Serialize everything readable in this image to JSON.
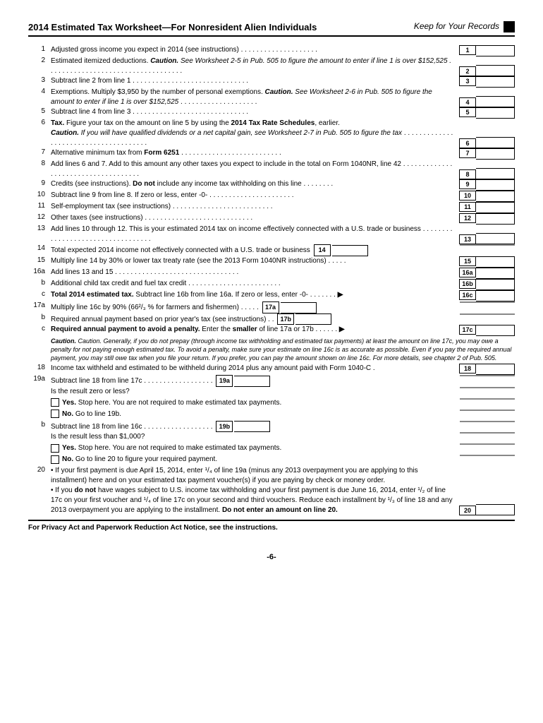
{
  "header": {
    "title": "2014 Estimated Tax Worksheet—For Nonresident Alien Individuals",
    "keep": "Keep for Your Records"
  },
  "lines": {
    "l1": {
      "n": "1",
      "t": "Adjusted gross income you expect in 2014 (see instructions)",
      "box": "1"
    },
    "l2": {
      "n": "2",
      "box": "2"
    },
    "l2a": "Estimated itemized deductions. ",
    "l2b": "Caution.",
    "l2c": " See Worksheet 2-5 in Pub. 505 to figure the amount to enter if line 1 is over $152,525 .",
    "l3": {
      "n": "3",
      "t": "Subtract line 2 from line 1",
      "box": "3"
    },
    "l4": {
      "n": "4",
      "box": "4"
    },
    "l4a": "Exemptions. Multiply $3,950 by the number of personal exemptions. ",
    "l4b": "Caution.",
    "l4c": " See Worksheet 2-6 in Pub. 505 to figure the amount to enter if line 1 is over $152,525",
    "l5": {
      "n": "5",
      "t": "Subtract line 4 from line 3",
      "box": "5"
    },
    "l6": {
      "n": "6",
      "box": "6"
    },
    "l6a": "Tax.",
    "l6b": " Figure your tax on the amount on line 5 by using the ",
    "l6c": "2014 Tax Rate Schedules",
    "l6d": ", earlier.",
    "l6e": "Caution.",
    "l6f": " If you will have qualified dividends or a net capital gain, see Worksheet 2-7 in Pub. 505 to figure the tax",
    "l7": {
      "n": "7",
      "box": "7"
    },
    "l7a": "Alternative minimum tax from ",
    "l7b": "Form 6251",
    "l8": {
      "n": "8",
      "t": "Add lines 6 and 7. Add to this amount any other taxes you expect to include in the total on Form 1040NR, line 42",
      "box": "8"
    },
    "l9": {
      "n": "9",
      "box": "9"
    },
    "l9a": "Credits (see instructions). ",
    "l9b": "Do not",
    "l9c": " include any income tax withholding on this line",
    "l10": {
      "n": "10",
      "t": "Subtract line 9 from line 8. If zero or less, enter -0-",
      "box": "10"
    },
    "l11": {
      "n": "11",
      "t": "Self-employment tax (see instructions)",
      "box": "11"
    },
    "l12": {
      "n": "12",
      "t": "Other taxes (see instructions)",
      "box": "12"
    },
    "l13": {
      "n": "13",
      "t": "Add lines 10 through 12. This is your estimated 2014 tax on income effectively connected with a U.S. trade or business",
      "box": "13"
    },
    "l14": {
      "n": "14",
      "t": "Total expected 2014 income not effectively connected with a U.S. trade or business",
      "box": "14"
    },
    "l15": {
      "n": "15",
      "t": "Multiply line 14 by 30% or lower tax treaty rate (see the 2013 Form 1040NR instructions)",
      "box": "15"
    },
    "l16a": {
      "n": "16a",
      "t": "Add lines 13 and 15",
      "box": "16a"
    },
    "l16b": {
      "n": "b",
      "t": "Additional child tax credit and fuel tax credit",
      "box": "16b"
    },
    "l16c": {
      "n": "c",
      "box": "16c"
    },
    "l16ca": "Total 2014 estimated tax.",
    "l16cb": " Subtract line 16b from line 16a. If zero or less, enter -0-",
    "l17a": {
      "n": "17a",
      "t": "Multiply line 16c by 90% (66²/₃ % for farmers and fishermen)",
      "box": "17a"
    },
    "l17b": {
      "n": "b",
      "t": "Required annual payment based on prior year's tax (see instructions) .",
      "box": "17b"
    },
    "l17c": {
      "n": "c",
      "box": "17c"
    },
    "l17ca": "Required annual payment to avoid a penalty.",
    "l17cb": " Enter the ",
    "l17cc": "smaller",
    "l17cd": " of line 17a or 17b",
    "caution17": "Caution. Generally, if you do not prepay (through income tax withholding and estimated tax payments) at least the amount on line 17c, you may owe a penalty for not paying enough estimated tax. To avoid a penalty, make sure your estimate on line 16c is as accurate as possible. Even if you pay the required annual payment, you may still owe tax when you file your return. If you prefer, you can pay the amount shown on line 16c. For more details, see chapter 2 of Pub. 505.",
    "l18": {
      "n": "18",
      "t": "Income tax withheld and estimated to be withheld during 2014 plus any amount paid with Form 1040-C",
      "box": "18"
    },
    "l19a": {
      "n": "19a",
      "t": "Subtract line 18 from line 17c",
      "box": "19a"
    },
    "q19a": "Is the result zero or less?",
    "yes19": "Yes.",
    "yes19t": " Stop here. You are not required to make estimated tax payments.",
    "no19": "No.",
    "no19t": " Go to line 19b.",
    "l19b": {
      "n": "b",
      "t": "Subtract line 18 from line 16c",
      "box": "19b"
    },
    "q19b": "Is the result less than $1,000?",
    "yes19b": "Yes.",
    "yes19bt": " Stop here. You are not required to make estimated tax payments.",
    "no19b": "No.",
    "no19bt": " Go to line 20 to figure your required payment.",
    "l20": {
      "n": "20",
      "box": "20"
    },
    "l20a": "• If your first payment is due April 15, 2014, enter ¹/₄ of line 19a (minus any 2013 overpayment you are applying to this installment) here and on your estimated tax payment voucher(s) if you are paying by check or money order.",
    "l20b1": "• If you ",
    "l20b2": "do not",
    "l20b3": " have wages subject to U.S. income tax withholding and your first payment is due June 16, 2014, enter ¹/₂ of line 17c on your first voucher and ¹/₄ of line 17c on your second and third vouchers. Reduce each installment by ¹/₃ of line 18 and any 2013 overpayment you are applying to the installment. ",
    "l20b4": "Do not enter an amount on line 20."
  },
  "footer": "For Privacy Act and Paperwork Reduction Act Notice, see the instructions.",
  "page": "-6-"
}
